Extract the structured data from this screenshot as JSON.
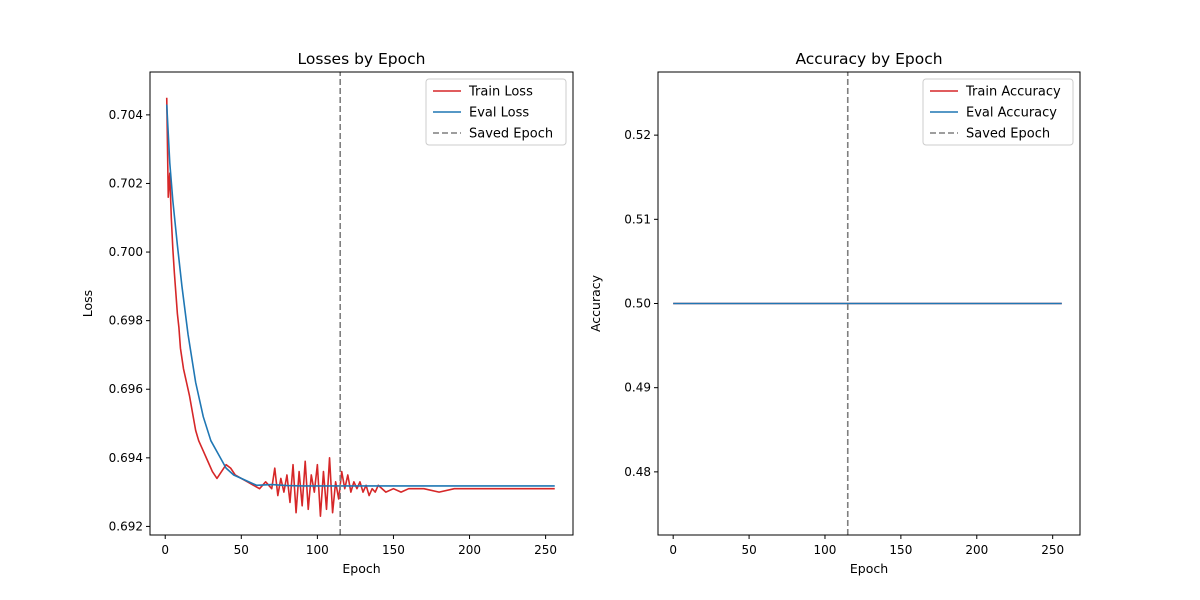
{
  "chart_data": [
    {
      "type": "line",
      "title": "Losses by Epoch",
      "xlabel": "Epoch",
      "ylabel": "Loss",
      "xlim": [
        -10,
        268
      ],
      "ylim": [
        0.69175,
        0.70525
      ],
      "xticks": [
        0,
        50,
        100,
        150,
        200,
        250
      ],
      "yticks": [
        0.692,
        0.694,
        0.696,
        0.698,
        0.7,
        0.702,
        0.704
      ],
      "tick_labels_x": [
        "0",
        "50",
        "100",
        "150",
        "200",
        "250"
      ],
      "tick_labels_y": [
        "0.692",
        "0.694",
        "0.696",
        "0.698",
        "0.700",
        "0.702",
        "0.704"
      ],
      "grid": false,
      "legend_position": "top-right",
      "saved_epoch": 115,
      "series": [
        {
          "name": "Train Loss",
          "color": "#d62728",
          "style": "solid",
          "x": [
            1,
            2,
            3,
            4,
            5,
            6,
            7,
            8,
            9,
            10,
            12,
            14,
            16,
            18,
            20,
            22,
            25,
            28,
            31,
            34,
            37,
            40,
            43,
            46,
            50,
            54,
            58,
            62,
            66,
            70,
            72,
            74,
            76,
            78,
            80,
            82,
            84,
            86,
            88,
            90,
            92,
            94,
            96,
            98,
            100,
            102,
            104,
            106,
            108,
            110,
            112,
            114,
            116,
            118,
            120,
            122,
            124,
            126,
            128,
            130,
            132,
            134,
            136,
            138,
            140,
            145,
            150,
            155,
            160,
            170,
            180,
            190,
            200,
            210,
            220,
            230,
            240,
            250,
            256
          ],
          "values": [
            0.7045,
            0.7016,
            0.7023,
            0.701,
            0.7001,
            0.6994,
            0.6988,
            0.6982,
            0.6978,
            0.6972,
            0.6966,
            0.6962,
            0.6958,
            0.6953,
            0.6948,
            0.6945,
            0.6942,
            0.6939,
            0.6936,
            0.6934,
            0.6936,
            0.6938,
            0.6937,
            0.6935,
            0.6934,
            0.6933,
            0.6932,
            0.6931,
            0.6933,
            0.6931,
            0.6937,
            0.6929,
            0.6934,
            0.693,
            0.6935,
            0.6927,
            0.6938,
            0.6924,
            0.6936,
            0.6926,
            0.6939,
            0.6925,
            0.6935,
            0.693,
            0.6938,
            0.6923,
            0.6936,
            0.6925,
            0.694,
            0.6924,
            0.6933,
            0.6928,
            0.6936,
            0.6931,
            0.6935,
            0.693,
            0.6933,
            0.6931,
            0.6933,
            0.693,
            0.6932,
            0.6929,
            0.6931,
            0.693,
            0.6932,
            0.693,
            0.6931,
            0.693,
            0.6931,
            0.6931,
            0.693,
            0.6931,
            0.6931,
            0.6931,
            0.6931,
            0.6931,
            0.6931,
            0.6931,
            0.6931
          ]
        },
        {
          "name": "Eval Loss",
          "color": "#1f77b4",
          "style": "solid",
          "x": [
            1,
            3,
            5,
            8,
            11,
            15,
            20,
            25,
            30,
            35,
            40,
            45,
            50,
            55,
            60,
            70,
            80,
            90,
            100,
            110,
            120,
            140,
            160,
            180,
            200,
            220,
            240,
            256
          ],
          "values": [
            0.7043,
            0.7026,
            0.7015,
            0.7002,
            0.699,
            0.6976,
            0.6962,
            0.6952,
            0.6945,
            0.6941,
            0.6937,
            0.6935,
            0.6934,
            0.6933,
            0.6932,
            0.69322,
            0.69319,
            0.69318,
            0.69318,
            0.69318,
            0.69318,
            0.69318,
            0.69318,
            0.69318,
            0.69318,
            0.69318,
            0.69318,
            0.69318
          ]
        },
        {
          "name": "Saved Epoch",
          "color": "#7f7f7f",
          "style": "dashed",
          "x": [
            115,
            115
          ],
          "values": [
            0.69175,
            0.70525
          ]
        }
      ]
    },
    {
      "type": "line",
      "title": "Accuracy by Epoch",
      "xlabel": "Epoch",
      "ylabel": "Accuracy",
      "xlim": [
        -10,
        268
      ],
      "ylim": [
        0.4725,
        0.5275
      ],
      "xticks": [
        0,
        50,
        100,
        150,
        200,
        250
      ],
      "yticks": [
        0.48,
        0.49,
        0.5,
        0.51,
        0.52
      ],
      "tick_labels_x": [
        "0",
        "50",
        "100",
        "150",
        "200",
        "250"
      ],
      "tick_labels_y": [
        "0.48",
        "0.49",
        "0.50",
        "0.51",
        "0.52"
      ],
      "grid": false,
      "legend_position": "top-right",
      "saved_epoch": 115,
      "series": [
        {
          "name": "Train Accuracy",
          "color": "#d62728",
          "style": "solid",
          "x": [
            0,
            256
          ],
          "values": [
            0.5,
            0.5
          ]
        },
        {
          "name": "Eval Accuracy",
          "color": "#1f77b4",
          "style": "solid",
          "x": [
            0,
            256
          ],
          "values": [
            0.5,
            0.5
          ]
        },
        {
          "name": "Saved Epoch",
          "color": "#7f7f7f",
          "style": "dashed",
          "x": [
            115,
            115
          ],
          "values": [
            0.4725,
            0.5275
          ]
        }
      ]
    }
  ]
}
